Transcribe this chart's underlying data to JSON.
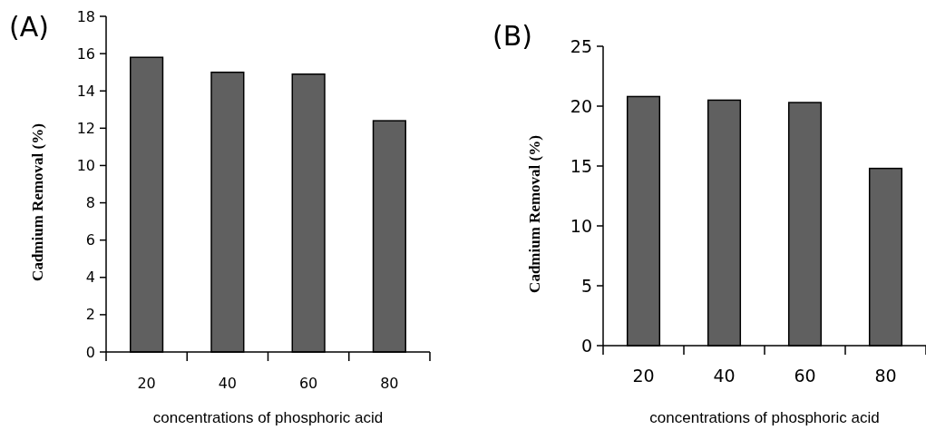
{
  "chart_data": [
    {
      "type": "bar",
      "title": "(A)",
      "xlabel": "concentrations of phosphoric acid",
      "ylabel": "Cadmium Removal (%)",
      "categories": [
        "20",
        "40",
        "60",
        "80"
      ],
      "values": [
        15.8,
        15.0,
        14.9,
        12.4
      ],
      "color": "#606060",
      "ylim": [
        0,
        18
      ],
      "yticks": [
        0,
        2,
        4,
        6,
        8,
        10,
        12,
        14,
        16,
        18
      ],
      "grid": false
    },
    {
      "type": "bar",
      "title": "(B)",
      "xlabel": "concentrations of phosphoric acid",
      "ylabel": "Cadmium Removal (%)",
      "categories": [
        "20",
        "40",
        "60",
        "80"
      ],
      "values": [
        20.8,
        20.5,
        20.3,
        14.8
      ],
      "color": "#606060",
      "ylim": [
        0,
        25
      ],
      "yticks": [
        0,
        5,
        10,
        15,
        20,
        25
      ],
      "grid": false
    }
  ]
}
